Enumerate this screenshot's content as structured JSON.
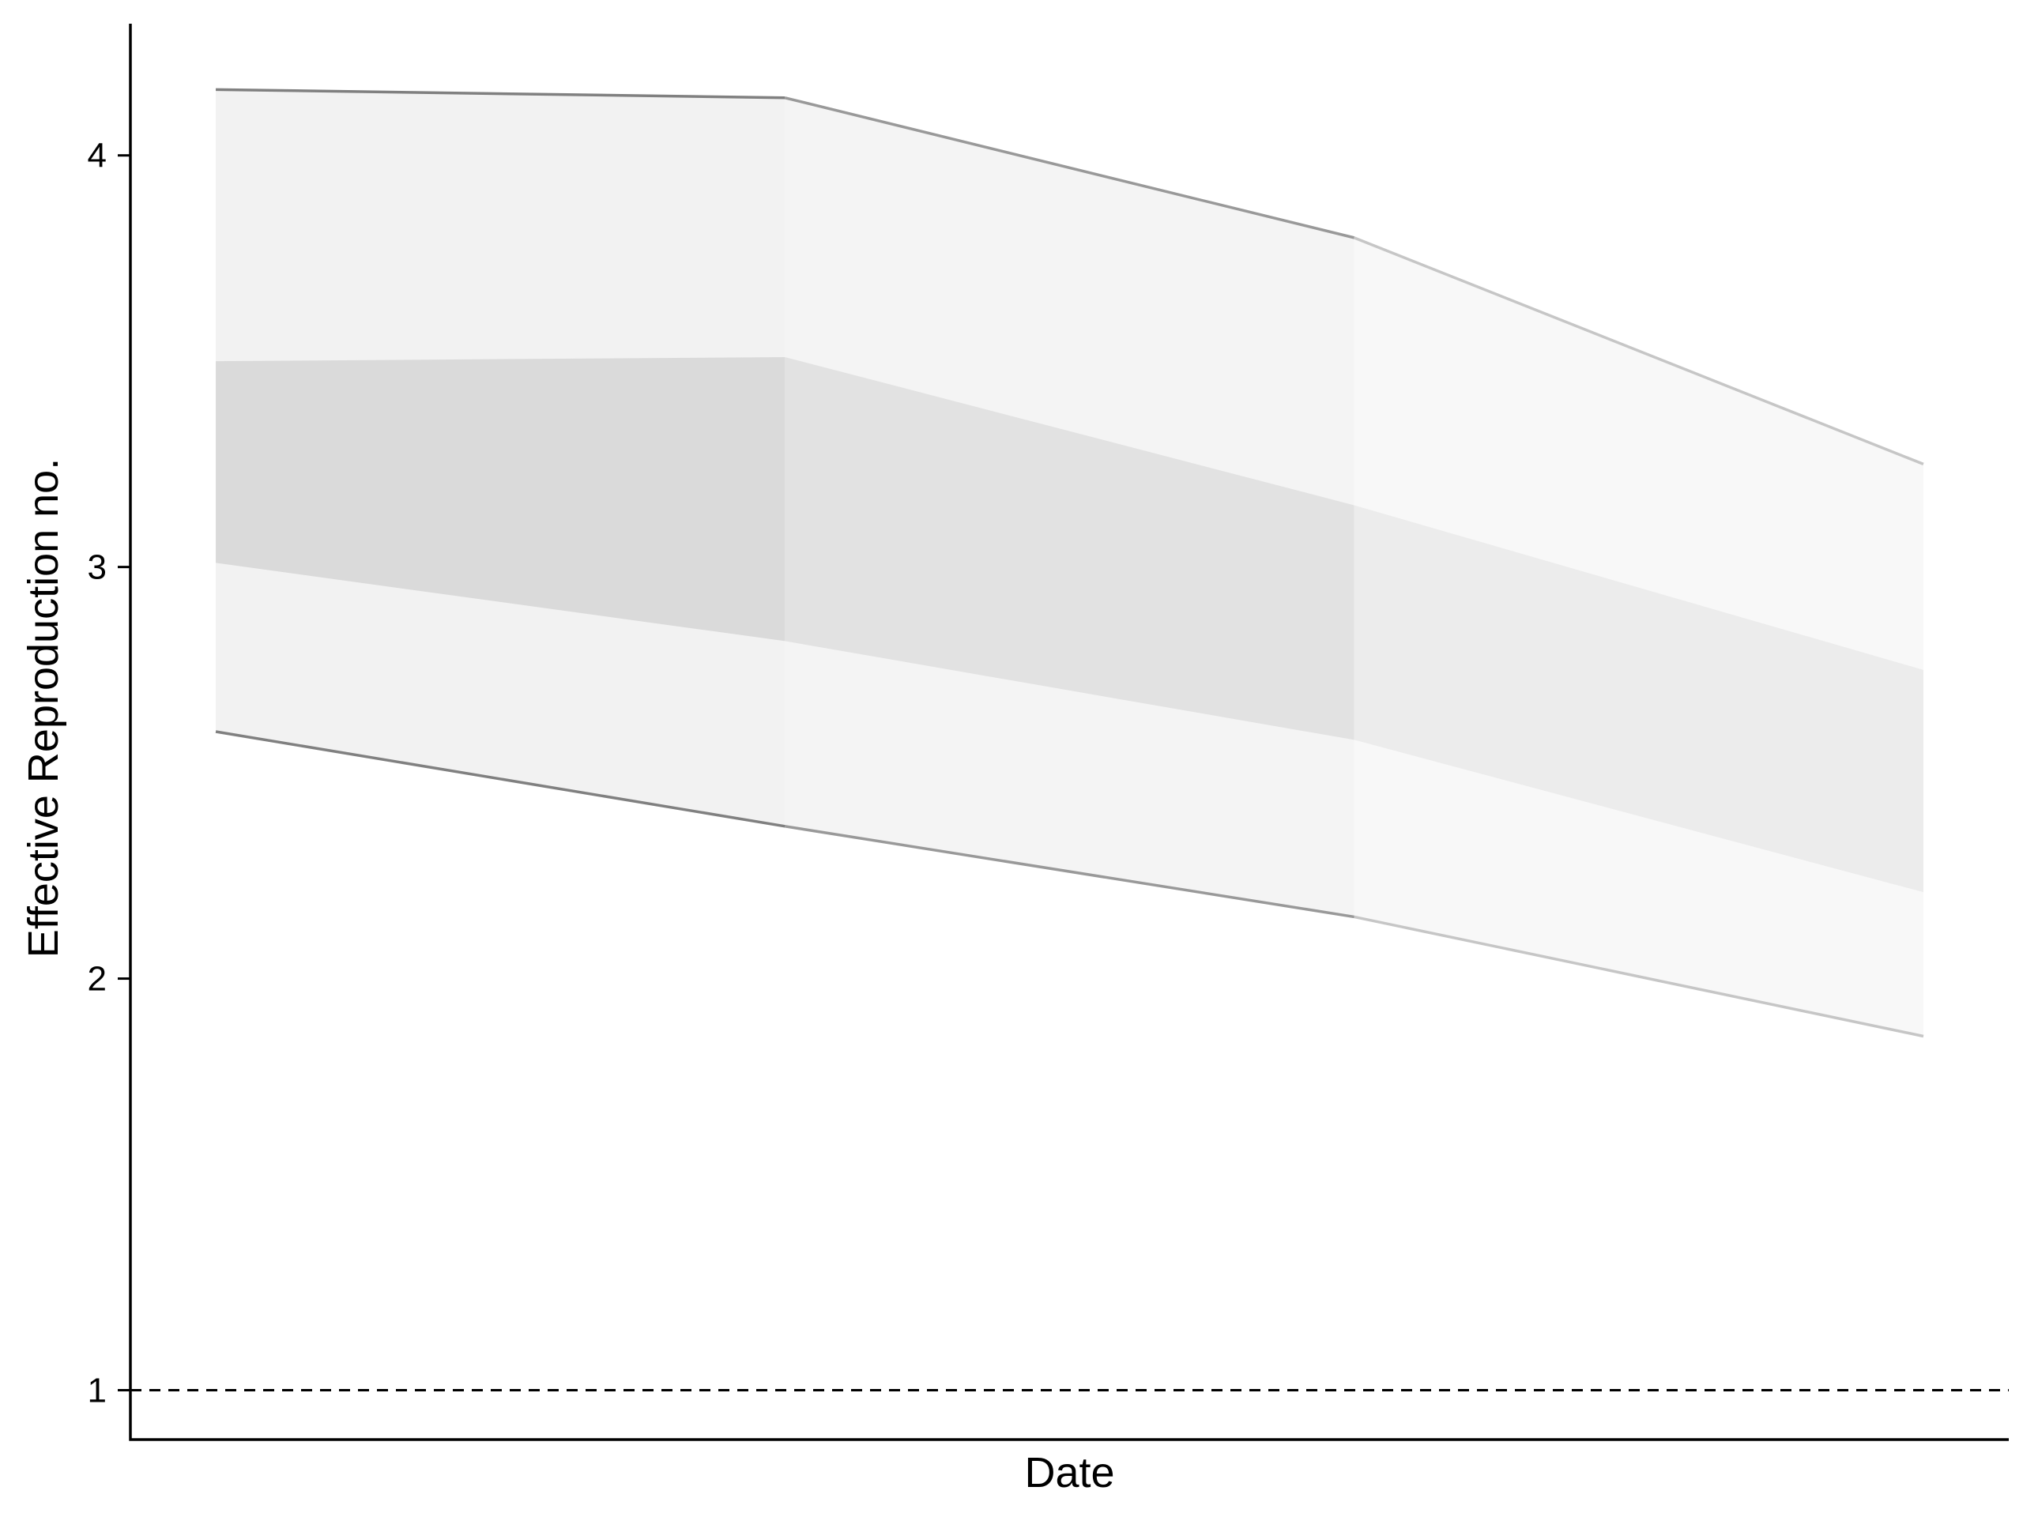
{
  "chart_data": {
    "type": "area",
    "title": "",
    "xlabel": "Date",
    "ylabel": "Effective Reproduction no.",
    "x": [
      1,
      2,
      3,
      4
    ],
    "xlim": [
      0.85,
      4.15
    ],
    "ylim": [
      0.88,
      4.32
    ],
    "yticks": [
      1,
      2,
      3,
      4
    ],
    "grid": false,
    "reference_line": {
      "y": 1,
      "style": "dashed"
    },
    "bands": [
      {
        "name": "",
        "lower": [
          2.6,
          2.37,
          2.15,
          1.86
        ],
        "upper": [
          4.16,
          4.14,
          3.8,
          3.25
        ],
        "segment_colors": [
          "#f2f2f2",
          "#f4f4f4",
          "#f8f8f8"
        ],
        "edge_colors": [
          "#808080",
          "#999999",
          "#c6c6c6"
        ]
      },
      {
        "name": "",
        "lower": [
          3.01,
          2.82,
          2.58,
          2.21
        ],
        "upper": [
          3.5,
          3.51,
          3.15,
          2.75
        ],
        "segment_colors": [
          "#dadada",
          "#e2e2e2",
          "#ececec"
        ]
      }
    ]
  }
}
